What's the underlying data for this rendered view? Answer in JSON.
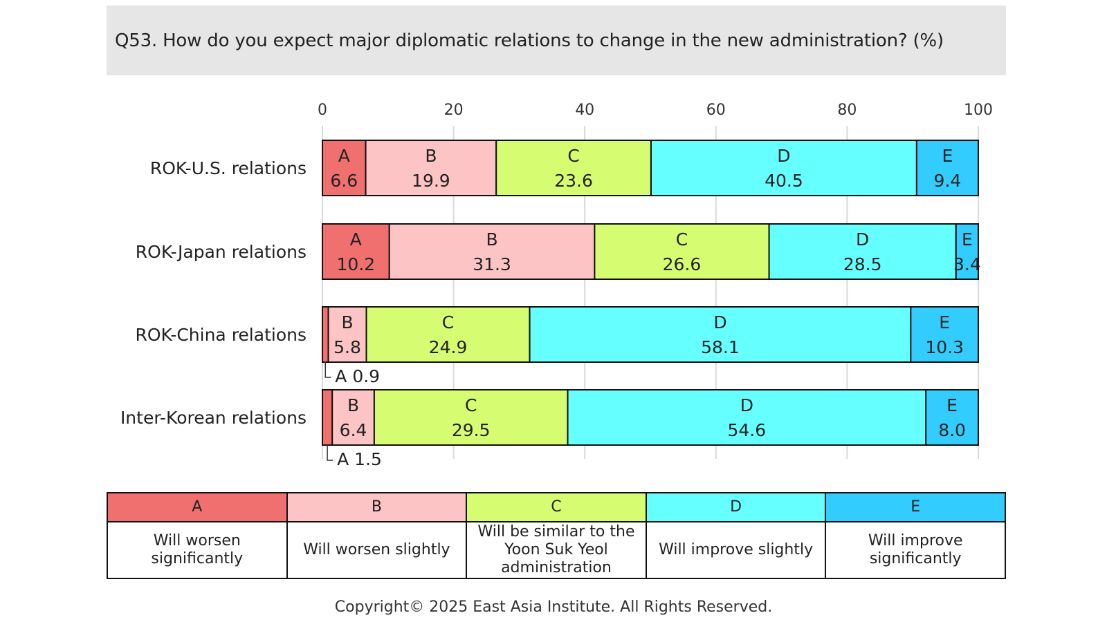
{
  "title": "Q53. How do you expect major diplomatic relations to change in the new administration?  (%)",
  "copyright": "Copyright© 2025 East Asia Institute. All Rights Reserved.",
  "legend": [
    {
      "code": "A",
      "desc": "Will worsen significantly",
      "color": "#f07070"
    },
    {
      "code": "B",
      "desc": "Will worsen slightly",
      "color": "#fcc4c4"
    },
    {
      "code": "C",
      "desc": "Will be similar to the Yoon Suk Yeol administration",
      "color": "#d6fc72"
    },
    {
      "code": "D",
      "desc": "Will improve slightly",
      "color": "#66ffff"
    },
    {
      "code": "E",
      "desc": "Will improve significantly",
      "color": "#33ccff"
    }
  ],
  "chart_data": {
    "type": "bar",
    "orientation": "horizontal",
    "stacked": true,
    "categories": [
      "ROK-U.S. relations",
      "ROK-Japan relations",
      "ROK-China relations",
      "Inter-Korean relations"
    ],
    "series": [
      {
        "name": "A",
        "values": [
          6.6,
          10.2,
          0.9,
          1.5
        ]
      },
      {
        "name": "B",
        "values": [
          19.9,
          31.3,
          5.8,
          6.4
        ]
      },
      {
        "name": "C",
        "values": [
          23.6,
          26.6,
          24.9,
          29.5
        ]
      },
      {
        "name": "D",
        "values": [
          40.5,
          28.5,
          58.1,
          54.6
        ]
      },
      {
        "name": "E",
        "values": [
          9.4,
          3.4,
          10.3,
          8.0
        ]
      }
    ],
    "xlim": [
      0,
      100
    ],
    "xticks": [
      0,
      20,
      40,
      60,
      80,
      100
    ],
    "grid": true,
    "axis_position": "top",
    "outside_labels": [
      "",
      "",
      "A 0.9",
      "A 1.5"
    ]
  }
}
